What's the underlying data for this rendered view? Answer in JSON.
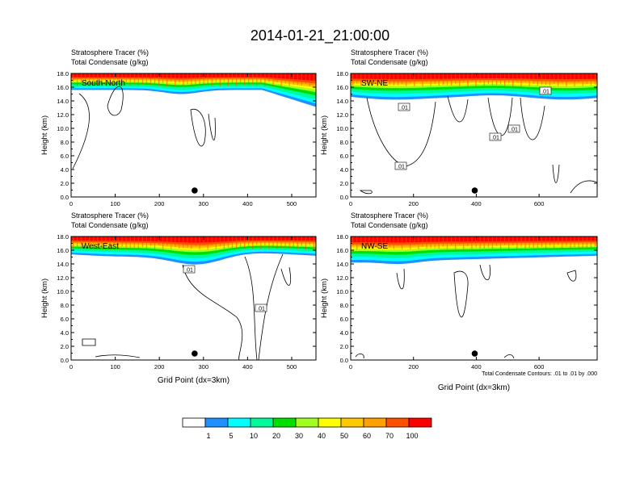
{
  "title": "2014-01-21_21:00:00",
  "chart_data": [
    {
      "type": "heatmap",
      "title_lines": [
        "Stratosphere Tracer   (%)",
        "Total Condensate   (g/kg)"
      ],
      "panel_label": "South-North",
      "ylabel": "Height (km)",
      "xlabel": "",
      "xlim": [
        0,
        555
      ],
      "ylim": [
        0,
        18
      ],
      "xticks": [
        "0",
        "100",
        "200",
        "300",
        "400",
        "500"
      ],
      "yticks": [
        "0.0",
        "2.0",
        "4.0",
        "6.0",
        "8.0",
        "10.0",
        "12.0",
        "14.0",
        "16.0",
        "18.0"
      ],
      "marker_x": 280,
      "contour_labels": []
    },
    {
      "type": "heatmap",
      "title_lines": [
        "Stratosphere Tracer   (%)",
        "Total Condensate   (g/kg)"
      ],
      "panel_label": "SW-NE",
      "ylabel": "Height (km)",
      "xlabel": "",
      "xlim": [
        0,
        785
      ],
      "ylim": [
        0,
        18
      ],
      "xticks": [
        "0",
        "200",
        "400",
        "600"
      ],
      "yticks": [
        "0.0",
        "2.0",
        "4.0",
        "6.0",
        "8.0",
        "10.0",
        "12.0",
        "14.0",
        "16.0",
        "18.0"
      ],
      "marker_x": 395,
      "contour_labels": [
        ".01",
        ".01",
        ".01",
        ".01",
        ".01"
      ]
    },
    {
      "type": "heatmap",
      "title_lines": [
        "Stratosphere Tracer   (%)",
        "Total Condensate   (g/kg)"
      ],
      "panel_label": "West-East",
      "ylabel": "Height (km)",
      "xlabel": "Grid Point (dx=3km)",
      "xlim": [
        0,
        555
      ],
      "ylim": [
        0,
        18
      ],
      "xticks": [
        "0",
        "100",
        "200",
        "300",
        "400",
        "500"
      ],
      "yticks": [
        "0.0",
        "2.0",
        "4.0",
        "6.0",
        "8.0",
        "10.0",
        "12.0",
        "14.0",
        "16.0",
        "18.0"
      ],
      "marker_x": 280,
      "contour_labels": [
        ".01",
        ".01"
      ]
    },
    {
      "type": "heatmap",
      "title_lines": [
        "Stratosphere Tracer   (%)",
        "Total Condensate   (g/kg)"
      ],
      "panel_label": "NW-SE",
      "ylabel": "Height (km)",
      "xlabel": "Grid Point (dx=3km)",
      "xlim": [
        0,
        785
      ],
      "ylim": [
        0,
        18
      ],
      "xticks": [
        "0",
        "200",
        "400",
        "600"
      ],
      "yticks": [
        "0.0",
        "2.0",
        "4.0",
        "6.0",
        "8.0",
        "10.0",
        "12.0",
        "14.0",
        "16.0",
        "18.0"
      ],
      "marker_x": 395,
      "contour_labels": [],
      "note": "Total Condensate Contours: .01 to .01 by .000"
    }
  ],
  "colorbar": {
    "labels": [
      "1",
      "5",
      "10",
      "20",
      "30",
      "40",
      "50",
      "60",
      "70",
      "100"
    ],
    "colors": [
      "#ffffff",
      "#1e90ff",
      "#00ffff",
      "#00fa9a",
      "#00e000",
      "#a0ff20",
      "#ffff00",
      "#ffc800",
      "#ffa000",
      "#ff5000",
      "#ff0000"
    ]
  }
}
